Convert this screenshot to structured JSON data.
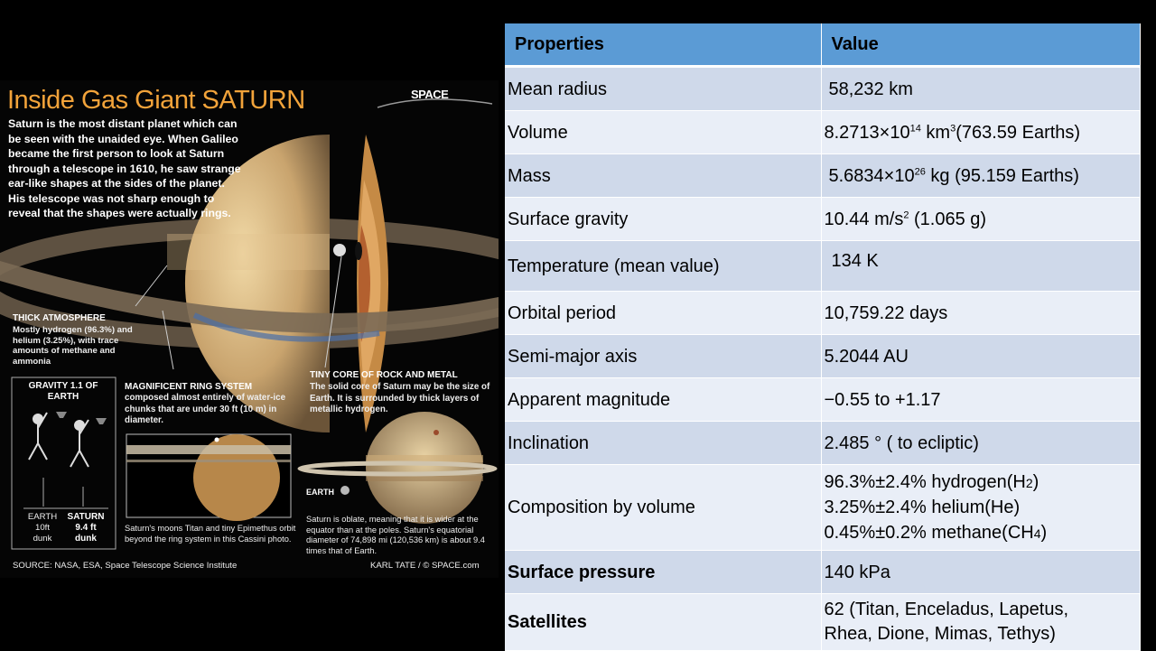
{
  "infographic": {
    "title": "Inside Gas Giant SATURN",
    "logo": "SPACE",
    "intro": "Saturn is the most distant planet which can be seen with the unaided eye. When Galileo became the first person to look at Saturn through a telescope in 1610, he saw strange ear-like shapes at the sides of the planet. His telescope was not sharp enough to reveal that the shapes were actually rings.",
    "atmosphere_heading": "THICK ATMOSPHERE",
    "atmosphere_text": "Mostly hydrogen (96.3%) and helium (3.25%), with trace amounts of methane and ammonia",
    "gravity_heading": "GRAVITY 1.1 OF EARTH",
    "earth_label": "EARTH",
    "earth_dunk": "10ft dunk",
    "saturn_label": "SATURN",
    "saturn_dunk": "9.4 ft dunk",
    "ring_heading": "MAGNIFICENT RING SYSTEM",
    "ring_text": "composed almost entirely of water-ice chunks that are under 30 ft (10 m) in diameter.",
    "core_heading": "TINY CORE OF ROCK AND METAL",
    "core_text": "The solid core of Saturn may be the size of Earth. It is surrounded by thick layers of metallic hydrogen.",
    "moons_caption": "Saturn's moons Titan and tiny Epimethus orbit beyond the ring system in this Cassini photo.",
    "earth_small_label": "EARTH",
    "oblate_text": "Saturn is oblate, meaning that it is wider at the equator than at the poles. Saturn's equatorial diameter of 74,898 mi (120,536 km) is about 9.4 times that of Earth.",
    "source": "SOURCE: NASA, ESA, Space Telescope Science Institute",
    "credit": "KARL TATE / © SPACE.com"
  },
  "table": {
    "header_properties": "Properties",
    "header_value": "Value",
    "mean_radius_label": "Mean radius",
    "mean_radius_value": "58,232 km",
    "volume_label": "Volume",
    "volume_base": "8.2713×10",
    "volume_exp": "14",
    "volume_unit": "km",
    "volume_unit_exp": "3",
    "volume_note": "(763.59 Earths)",
    "mass_label": "Mass",
    "mass_base": "5.6834×10",
    "mass_exp": "26",
    "mass_rest": "kg  (95.159 Earths)",
    "gravity_label": "Surface gravity",
    "gravity_base": "10.44 m/s",
    "gravity_exp": "2",
    "gravity_note": "(1.065 g)",
    "temperature_label": "Temperature (mean value)",
    "temperature_value": "134 K",
    "orbital_label": "Orbital period",
    "orbital_value": "10,759.22 days",
    "semimajor_label": "Semi-major axis",
    "semimajor_value": "5.2044 AU",
    "magnitude_label": "Apparent magnitude",
    "magnitude_value": "−0.55 to +1.17",
    "inclination_label": "Inclination",
    "inclination_value": "2.485 °  ( to ecliptic)",
    "composition_label": "Composition by volume",
    "comp_h_pre": "96.3%±2.4%  hydrogen(H",
    "comp_h_sub": "2",
    "comp_h_post": ")",
    "comp_he": "3.25%±2.4%  helium(He)",
    "comp_ch_pre": "0.45%±0.2%  methane(CH",
    "comp_ch_sub": "4",
    "comp_ch_post": ")",
    "pressure_label": "Surface pressure",
    "pressure_value": "140 kPa",
    "satellites_label": "Satellites",
    "satellites_line1": "62 (Titan, Enceladus, Lapetus,",
    "satellites_line2": "Rhea, Dione, Mimas, Tethys)"
  }
}
